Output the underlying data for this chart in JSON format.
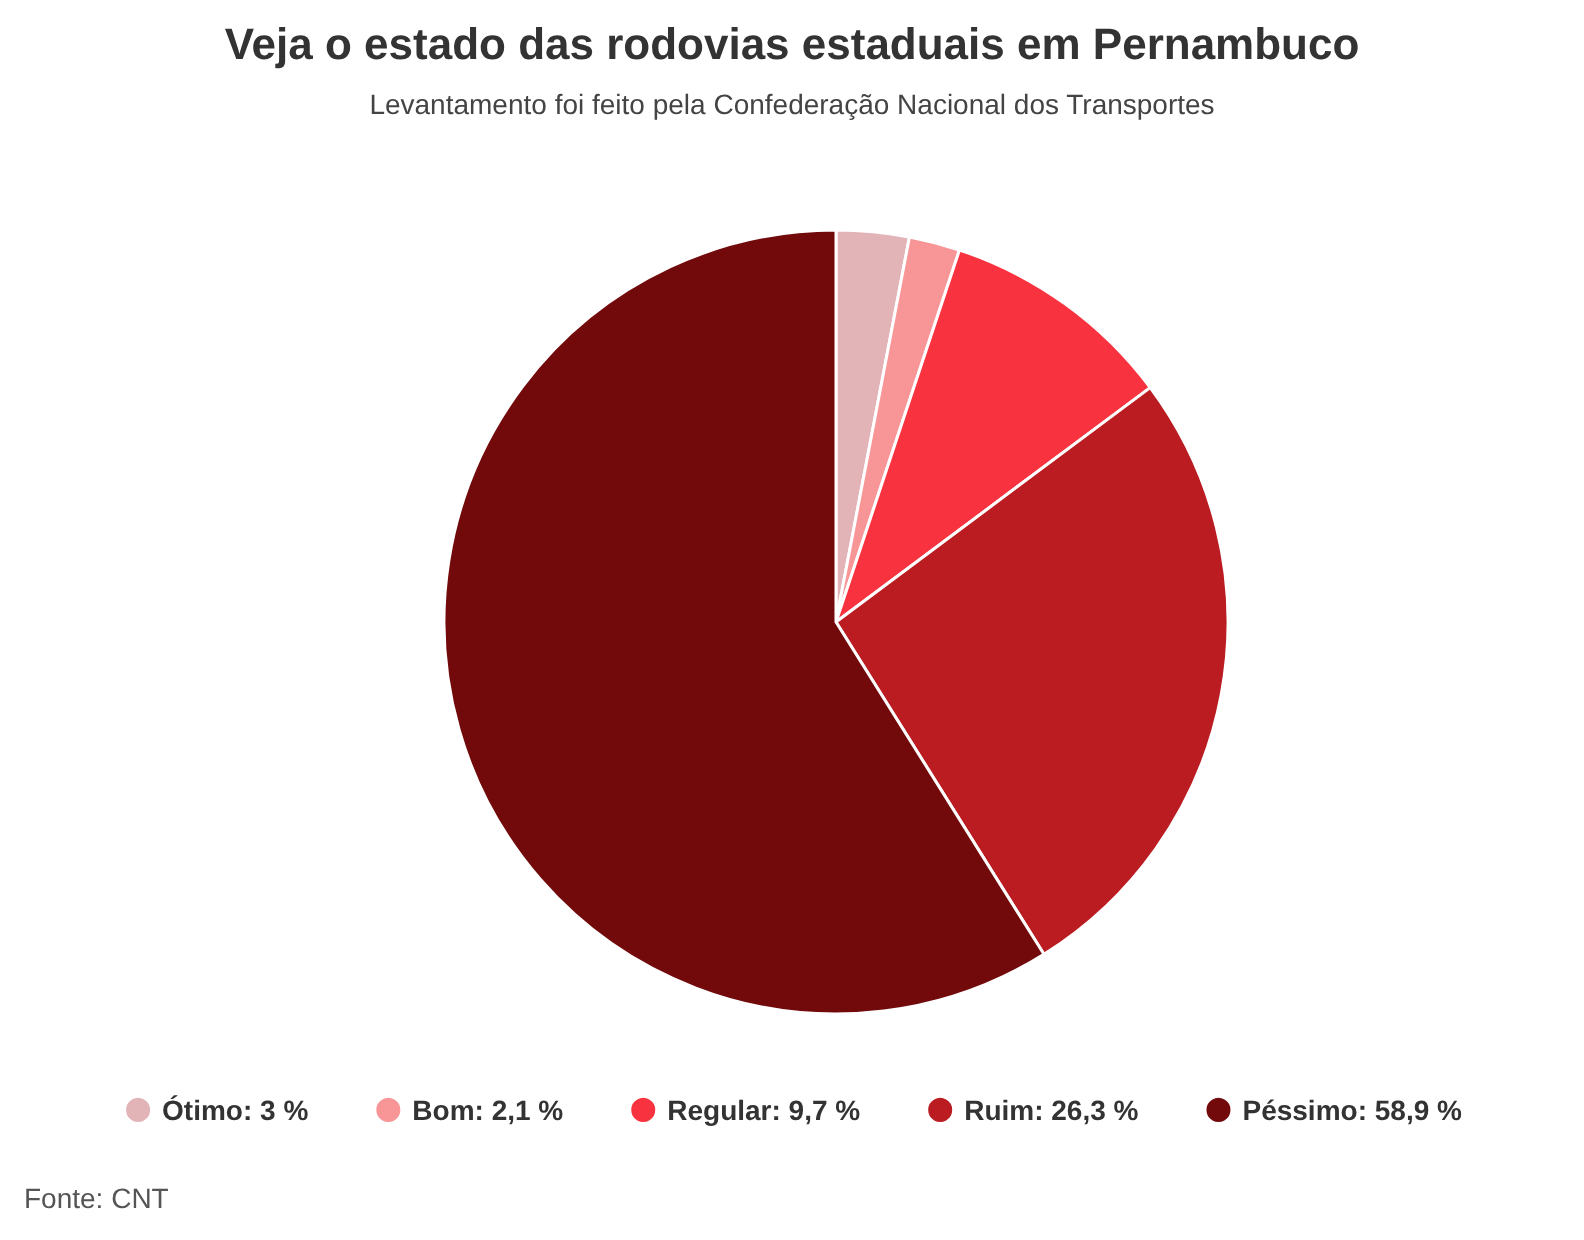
{
  "chart_data": {
    "type": "pie",
    "title": "Veja o estado das rodovias estaduais em Pernambuco",
    "subtitle": "Levantamento foi feito pela Confederação Nacional dos Transportes",
    "categories": [
      "Ótimo",
      "Bom",
      "Regular",
      "Ruim",
      "Péssimo"
    ],
    "values": [
      3,
      2.1,
      9.7,
      26.3,
      58.9
    ],
    "value_labels": [
      "3 %",
      "2,1 %",
      "9,7 %",
      "26,3 %",
      "58,9 %"
    ],
    "colors": [
      "#e2b4b7",
      "#f79597",
      "#f8333f",
      "#ba1c21",
      "#720a0b"
    ],
    "legend": "bottom",
    "annotations": [
      "Fonte: CNT"
    ]
  }
}
